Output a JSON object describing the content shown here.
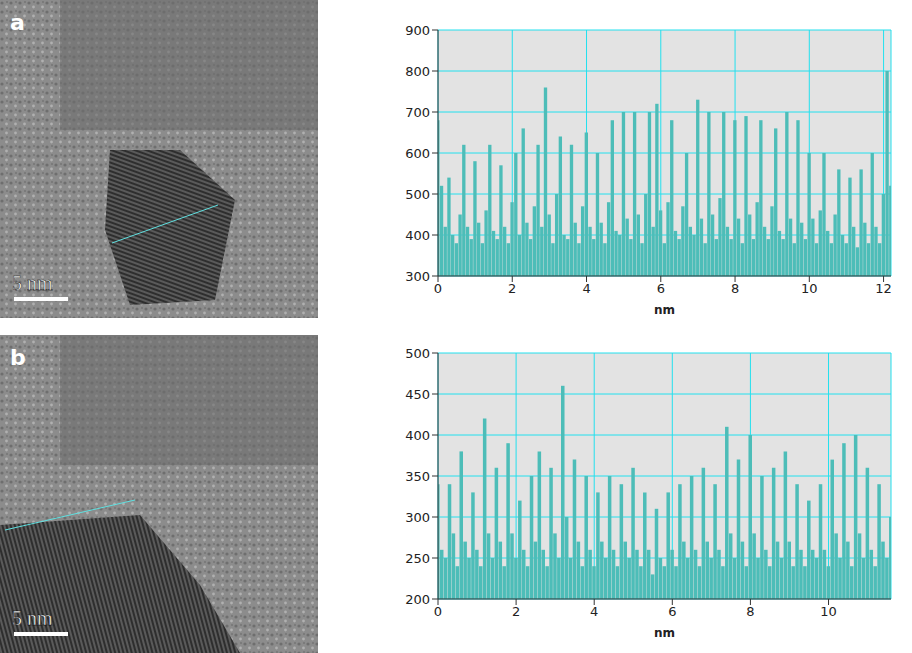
{
  "images": [
    {
      "label": "a",
      "scale_bar": "5 nm"
    },
    {
      "label": "b",
      "scale_bar": "5 nm"
    }
  ],
  "chart_data": [
    {
      "type": "bar",
      "xlabel": "nm",
      "color": "#4dbdb8",
      "grid": true,
      "xlim": [
        0,
        12.2
      ],
      "ylim": [
        300,
        900
      ],
      "xticks": [
        0,
        2,
        4,
        6,
        8,
        10,
        12
      ],
      "yticks": [
        300,
        400,
        500,
        600,
        700,
        800,
        900
      ],
      "x": [
        0,
        0.1,
        0.2,
        0.3,
        0.4,
        0.5,
        0.6,
        0.7,
        0.8,
        0.9,
        1,
        1.1,
        1.2,
        1.3,
        1.4,
        1.5,
        1.6,
        1.7,
        1.8,
        1.9,
        2,
        2.1,
        2.2,
        2.3,
        2.4,
        2.5,
        2.6,
        2.7,
        2.8,
        2.9,
        3,
        3.1,
        3.2,
        3.3,
        3.4,
        3.5,
        3.6,
        3.7,
        3.8,
        3.9,
        4,
        4.1,
        4.2,
        4.3,
        4.4,
        4.5,
        4.6,
        4.7,
        4.8,
        4.9,
        5,
        5.1,
        5.2,
        5.3,
        5.4,
        5.5,
        5.6,
        5.7,
        5.8,
        5.9,
        6,
        6.1,
        6.2,
        6.3,
        6.4,
        6.5,
        6.6,
        6.7,
        6.8,
        6.9,
        7,
        7.1,
        7.2,
        7.3,
        7.4,
        7.5,
        7.6,
        7.7,
        7.8,
        7.9,
        8,
        8.1,
        8.2,
        8.3,
        8.4,
        8.5,
        8.6,
        8.7,
        8.8,
        8.9,
        9,
        9.1,
        9.2,
        9.3,
        9.4,
        9.5,
        9.6,
        9.7,
        9.8,
        9.9,
        10,
        10.1,
        10.2,
        10.3,
        10.4,
        10.5,
        10.6,
        10.7,
        10.8,
        10.9,
        11,
        11.1,
        11.2,
        11.3,
        11.4,
        11.5,
        11.6,
        11.7,
        11.8,
        11.9,
        12,
        12.1,
        12.2
      ],
      "values": [
        680,
        520,
        420,
        540,
        400,
        380,
        450,
        620,
        420,
        390,
        580,
        430,
        380,
        460,
        620,
        410,
        390,
        570,
        420,
        380,
        480,
        600,
        400,
        660,
        430,
        390,
        470,
        620,
        420,
        760,
        450,
        380,
        500,
        640,
        400,
        390,
        620,
        430,
        380,
        470,
        650,
        420,
        390,
        600,
        430,
        380,
        480,
        680,
        410,
        400,
        700,
        440,
        390,
        700,
        450,
        380,
        500,
        700,
        420,
        720,
        460,
        380,
        480,
        680,
        410,
        390,
        470,
        600,
        420,
        400,
        730,
        440,
        380,
        700,
        450,
        390,
        490,
        700,
        420,
        390,
        680,
        440,
        380,
        690,
        450,
        390,
        480,
        680,
        420,
        390,
        470,
        660,
        410,
        390,
        700,
        440,
        380,
        680,
        430,
        390,
        600,
        440,
        380,
        460,
        600,
        410,
        380,
        450,
        560,
        400,
        380,
        540,
        420,
        370,
        560,
        430,
        380,
        600,
        420,
        380,
        500,
        800,
        520
      ]
    },
    {
      "type": "bar",
      "xlabel": "nm",
      "color": "#4dbdb8",
      "grid": true,
      "xlim": [
        0,
        11.6
      ],
      "ylim": [
        200,
        500
      ],
      "xticks": [
        0,
        2,
        4,
        6,
        8,
        10
      ],
      "yticks": [
        200,
        250,
        300,
        350,
        400,
        450,
        500
      ],
      "x": [
        0,
        0.1,
        0.2,
        0.3,
        0.4,
        0.5,
        0.6,
        0.7,
        0.8,
        0.9,
        1,
        1.1,
        1.2,
        1.3,
        1.4,
        1.5,
        1.6,
        1.7,
        1.8,
        1.9,
        2,
        2.1,
        2.2,
        2.3,
        2.4,
        2.5,
        2.6,
        2.7,
        2.8,
        2.9,
        3,
        3.1,
        3.2,
        3.3,
        3.4,
        3.5,
        3.6,
        3.7,
        3.8,
        3.9,
        4,
        4.1,
        4.2,
        4.3,
        4.4,
        4.5,
        4.6,
        4.7,
        4.8,
        4.9,
        5,
        5.1,
        5.2,
        5.3,
        5.4,
        5.5,
        5.6,
        5.7,
        5.8,
        5.9,
        6,
        6.1,
        6.2,
        6.3,
        6.4,
        6.5,
        6.6,
        6.7,
        6.8,
        6.9,
        7,
        7.1,
        7.2,
        7.3,
        7.4,
        7.5,
        7.6,
        7.7,
        7.8,
        7.9,
        8,
        8.1,
        8.2,
        8.3,
        8.4,
        8.5,
        8.6,
        8.7,
        8.8,
        8.9,
        9,
        9.1,
        9.2,
        9.3,
        9.4,
        9.5,
        9.6,
        9.7,
        9.8,
        9.9,
        10,
        10.1,
        10.2,
        10.3,
        10.4,
        10.5,
        10.6,
        10.7,
        10.8,
        10.9,
        11,
        11.1,
        11.2,
        11.3,
        11.4,
        11.5,
        11.6
      ],
      "values": [
        340,
        260,
        250,
        340,
        280,
        240,
        380,
        270,
        250,
        330,
        260,
        240,
        420,
        280,
        250,
        360,
        270,
        240,
        390,
        280,
        250,
        320,
        260,
        240,
        350,
        270,
        380,
        260,
        240,
        360,
        280,
        250,
        460,
        300,
        250,
        370,
        270,
        240,
        350,
        260,
        240,
        330,
        270,
        250,
        350,
        260,
        240,
        340,
        270,
        250,
        360,
        260,
        240,
        330,
        260,
        230,
        310,
        250,
        240,
        330,
        260,
        240,
        340,
        270,
        250,
        350,
        260,
        240,
        360,
        270,
        250,
        340,
        260,
        240,
        410,
        280,
        250,
        370,
        270,
        240,
        400,
        280,
        250,
        350,
        260,
        240,
        360,
        270,
        250,
        380,
        270,
        240,
        340,
        260,
        240,
        320,
        260,
        250,
        340,
        260,
        240,
        370,
        280,
        250,
        390,
        270,
        240,
        400,
        280,
        250,
        360,
        260,
        240,
        340,
        270,
        250,
        300
      ]
    }
  ]
}
